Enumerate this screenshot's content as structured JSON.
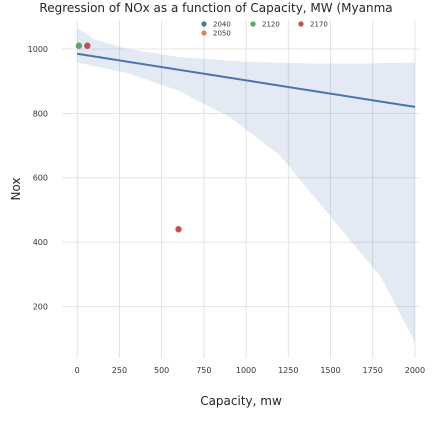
{
  "chart_data": {
    "type": "scatter",
    "title": "Regression of NOx as a function of Capacity, MW (Myanma",
    "xlabel": "Capacity, mw",
    "ylabel": "Nox",
    "xlim": [
      -90,
      2030
    ],
    "ylim": [
      40,
      1090
    ],
    "x_ticks": [
      0,
      250,
      500,
      750,
      1000,
      1250,
      1500,
      1750,
      2000
    ],
    "y_ticks": [
      200,
      400,
      600,
      800,
      1000
    ],
    "grid": true,
    "legend_placement": "top-right",
    "series": [
      {
        "name": "2040",
        "color": "#4c72b0",
        "points": []
      },
      {
        "name": "2050",
        "color": "#dd8452",
        "points": []
      },
      {
        "name": "2120",
        "color": "#55a868",
        "points": [
          {
            "x": 10,
            "y": 1010
          }
        ]
      },
      {
        "name": "2170",
        "color": "#c44e52",
        "points": [
          {
            "x": 60,
            "y": 1010
          },
          {
            "x": 600,
            "y": 440
          }
        ]
      }
    ],
    "regression": {
      "color": "#4c72b0",
      "line": [
        {
          "x": 0,
          "y": 985
        },
        {
          "x": 2000,
          "y": 820
        }
      ],
      "band_upper": [
        {
          "x": 0,
          "y": 1065
        },
        {
          "x": 100,
          "y": 1030
        },
        {
          "x": 300,
          "y": 1000
        },
        {
          "x": 600,
          "y": 975
        },
        {
          "x": 1000,
          "y": 960
        },
        {
          "x": 1400,
          "y": 955
        },
        {
          "x": 1700,
          "y": 955
        },
        {
          "x": 2000,
          "y": 958
        }
      ],
      "band_lower": [
        {
          "x": 0,
          "y": 958
        },
        {
          "x": 300,
          "y": 925
        },
        {
          "x": 600,
          "y": 870
        },
        {
          "x": 900,
          "y": 790
        },
        {
          "x": 1200,
          "y": 670
        },
        {
          "x": 1500,
          "y": 480
        },
        {
          "x": 1800,
          "y": 290
        },
        {
          "x": 2000,
          "y": 90
        }
      ]
    }
  }
}
